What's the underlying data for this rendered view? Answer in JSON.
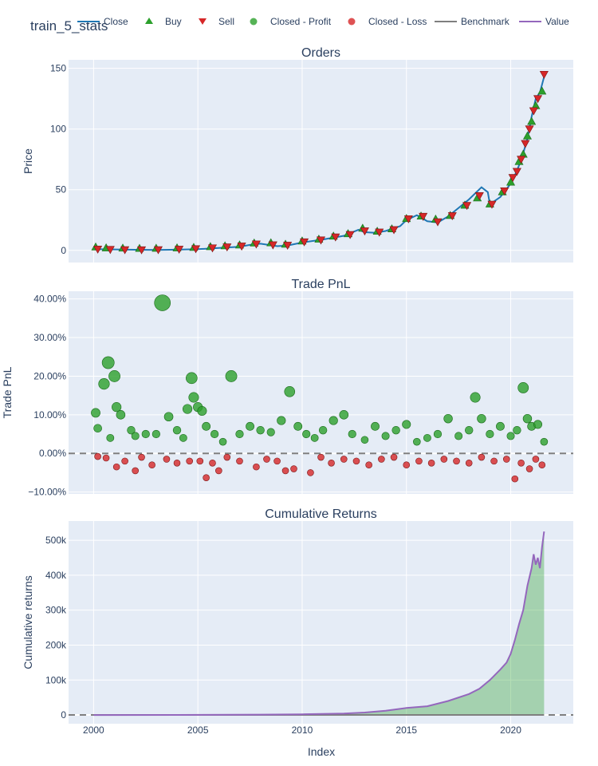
{
  "title": "train_5_stats",
  "colors": {
    "plot_bg": "#e5ecf6",
    "close": "#1f77b4",
    "buy": "#2ca02c",
    "sell": "#d62728",
    "profit": "#2ca02c",
    "loss": "#d62728",
    "benchmark": "#7f7f7f",
    "value": "#9467bd",
    "area_fill": "#2ca02c"
  },
  "legend": {
    "placement": "top",
    "items": [
      {
        "label": "Close",
        "icon": "line",
        "color": "#1f77b4"
      },
      {
        "label": "Buy",
        "icon": "triangle-up",
        "color": "#2ca02c"
      },
      {
        "label": "Sell",
        "icon": "triangle-down",
        "color": "#d62728"
      },
      {
        "label": "Closed - Profit",
        "icon": "circle",
        "color": "#2ca02c"
      },
      {
        "label": "Closed - Loss",
        "icon": "circle",
        "color": "#d62728"
      },
      {
        "label": "Benchmark",
        "icon": "line",
        "color": "#7f7f7f"
      },
      {
        "label": "Value",
        "icon": "line",
        "color": "#9467bd"
      }
    ]
  },
  "xaxis": {
    "label": "Index",
    "range": [
      1998.8,
      2023.0
    ],
    "ticks": [
      2000,
      2005,
      2010,
      2015,
      2020
    ],
    "tick_labels": [
      "2000",
      "2005",
      "2010",
      "2015",
      "2020"
    ]
  },
  "chart_data": [
    {
      "type": "line",
      "title": "Orders",
      "ylabel": "Price",
      "ylim": [
        -10,
        157
      ],
      "yticks": [
        0,
        50,
        100,
        150
      ],
      "ytick_labels": [
        "0",
        "50",
        "100",
        "150"
      ],
      "grid": true,
      "series": [
        {
          "name": "Close",
          "type": "line",
          "x": [
            2000.0,
            2001.0,
            2002.0,
            2003.0,
            2004.0,
            2005.0,
            2006.0,
            2007.0,
            2007.5,
            2008.0,
            2008.8,
            2009.3,
            2010.0,
            2011.0,
            2012.0,
            2012.7,
            2013.0,
            2013.5,
            2014.0,
            2014.7,
            2015.0,
            2015.5,
            2016.0,
            2016.5,
            2017.0,
            2017.5,
            2018.0,
            2018.6,
            2018.9,
            2019.0,
            2019.5,
            2020.0,
            2020.2,
            2020.4,
            2020.6,
            2020.8,
            2021.0,
            2021.2,
            2021.4,
            2021.6
          ],
          "y": [
            1,
            0.8,
            0.5,
            0.4,
            0.6,
            1.0,
            2.0,
            3.0,
            4.5,
            5.5,
            3.5,
            4.0,
            6.5,
            9.0,
            12.0,
            17.0,
            15.0,
            14.5,
            16.0,
            20.0,
            25.0,
            29.0,
            24.0,
            23.0,
            28.0,
            35.0,
            42.0,
            52.0,
            48.0,
            38.0,
            44.0,
            55.0,
            62.0,
            70.0,
            80.0,
            92.0,
            110.0,
            125.0,
            130.0,
            143.0
          ]
        },
        {
          "name": "Buy",
          "type": "markers",
          "x": [
            2000.1,
            2000.6,
            2001.4,
            2002.2,
            2003.0,
            2004.0,
            2004.8,
            2005.6,
            2006.3,
            2007.0,
            2007.7,
            2008.5,
            2009.2,
            2010.0,
            2010.8,
            2011.5,
            2012.2,
            2012.9,
            2013.6,
            2014.3,
            2015.0,
            2015.7,
            2016.4,
            2017.1,
            2017.8,
            2018.4,
            2019.0,
            2019.6,
            2020.0,
            2020.4,
            2020.6,
            2020.8,
            2021.0,
            2021.2,
            2021.5
          ],
          "y": [
            1.5,
            0.8,
            0.6,
            0.4,
            0.5,
            0.8,
            1.2,
            1.8,
            2.5,
            3.2,
            4.8,
            5.0,
            3.8,
            6.5,
            8.0,
            10.5,
            12.5,
            17.0,
            14.5,
            16.5,
            25.0,
            27.0,
            24.5,
            27.5,
            36.0,
            42.0,
            37.0,
            47.0,
            55.0,
            72.0,
            78.0,
            93.0,
            105.0,
            118.0,
            130.0
          ]
        },
        {
          "name": "Sell",
          "type": "markers",
          "x": [
            2000.2,
            2000.8,
            2001.5,
            2002.3,
            2003.1,
            2004.1,
            2004.9,
            2005.7,
            2006.4,
            2007.1,
            2007.8,
            2008.6,
            2009.3,
            2010.1,
            2010.9,
            2011.6,
            2012.3,
            2013.0,
            2013.7,
            2014.4,
            2015.1,
            2015.8,
            2016.5,
            2017.2,
            2017.9,
            2018.5,
            2019.1,
            2019.7,
            2020.1,
            2020.3,
            2020.5,
            2020.7,
            2020.9,
            2021.1,
            2021.3,
            2021.6
          ],
          "y": [
            1.0,
            0.7,
            0.5,
            0.4,
            0.5,
            0.9,
            1.3,
            2.0,
            2.8,
            3.5,
            5.2,
            4.5,
            4.2,
            7.0,
            8.5,
            11.0,
            13.0,
            16.0,
            15.0,
            17.0,
            26.0,
            28.0,
            23.5,
            28.5,
            37.0,
            45.0,
            38.0,
            49.0,
            60.0,
            65.0,
            75.0,
            88.0,
            100.0,
            115.0,
            125.0,
            145.0
          ]
        }
      ]
    },
    {
      "type": "scatter",
      "title": "Trade PnL",
      "ylabel": "Trade PnL",
      "ylim": [
        -0.105,
        0.42
      ],
      "yticks": [
        -0.1,
        0.0,
        0.1,
        0.2,
        0.3,
        0.4
      ],
      "ytick_labels": [
        "−10.00%",
        "0.00%",
        "10.00%",
        "20.00%",
        "30.00%",
        "40.00%"
      ],
      "zero_line": "dashed",
      "grid": true,
      "series": [
        {
          "name": "Closed - Profit",
          "x": [
            2000.1,
            2000.2,
            2000.5,
            2000.7,
            2000.8,
            2001.0,
            2001.1,
            2001.3,
            2001.8,
            2002.0,
            2002.5,
            2003.0,
            2003.3,
            2003.6,
            2004.0,
            2004.3,
            2004.5,
            2004.7,
            2004.8,
            2005.0,
            2005.2,
            2005.4,
            2005.8,
            2006.2,
            2006.6,
            2007.0,
            2007.5,
            2008.0,
            2008.5,
            2009.0,
            2009.4,
            2009.8,
            2010.2,
            2010.6,
            2011.0,
            2011.5,
            2012.0,
            2012.4,
            2013.0,
            2013.5,
            2014.0,
            2014.5,
            2015.0,
            2015.5,
            2016.0,
            2016.5,
            2017.0,
            2017.5,
            2018.0,
            2018.3,
            2018.6,
            2019.0,
            2019.5,
            2020.0,
            2020.3,
            2020.6,
            2020.8,
            2021.0,
            2021.3,
            2021.6
          ],
          "y": [
            0.105,
            0.065,
            0.18,
            0.235,
            0.04,
            0.2,
            0.12,
            0.1,
            0.06,
            0.045,
            0.05,
            0.05,
            0.39,
            0.095,
            0.06,
            0.04,
            0.115,
            0.195,
            0.145,
            0.12,
            0.11,
            0.07,
            0.05,
            0.03,
            0.2,
            0.05,
            0.07,
            0.06,
            0.055,
            0.085,
            0.16,
            0.07,
            0.05,
            0.04,
            0.06,
            0.085,
            0.1,
            0.05,
            0.035,
            0.07,
            0.045,
            0.06,
            0.075,
            0.03,
            0.04,
            0.05,
            0.09,
            0.045,
            0.06,
            0.145,
            0.09,
            0.05,
            0.07,
            0.045,
            0.06,
            0.17,
            0.09,
            0.07,
            0.075,
            0.03
          ]
        },
        {
          "name": "Closed - Loss",
          "x": [
            2000.2,
            2000.6,
            2001.1,
            2001.5,
            2002.0,
            2002.3,
            2002.8,
            2003.5,
            2004.0,
            2004.6,
            2005.1,
            2005.4,
            2005.7,
            2006.0,
            2006.4,
            2007.0,
            2007.8,
            2008.3,
            2008.8,
            2009.2,
            2009.6,
            2010.4,
            2010.9,
            2011.4,
            2012.0,
            2012.6,
            2013.2,
            2013.8,
            2014.4,
            2015.0,
            2015.6,
            2016.2,
            2016.8,
            2017.4,
            2018.0,
            2018.6,
            2019.2,
            2019.8,
            2020.2,
            2020.5,
            2020.9,
            2021.2,
            2021.5
          ],
          "y": [
            -0.008,
            -0.012,
            -0.035,
            -0.02,
            -0.045,
            -0.01,
            -0.03,
            -0.015,
            -0.025,
            -0.02,
            -0.02,
            -0.063,
            -0.025,
            -0.045,
            -0.01,
            -0.02,
            -0.035,
            -0.015,
            -0.02,
            -0.045,
            -0.04,
            -0.05,
            -0.01,
            -0.025,
            -0.015,
            -0.02,
            -0.03,
            -0.015,
            -0.01,
            -0.03,
            -0.02,
            -0.025,
            -0.015,
            -0.02,
            -0.025,
            -0.01,
            -0.02,
            -0.015,
            -0.066,
            -0.025,
            -0.04,
            -0.015,
            -0.03
          ]
        }
      ]
    },
    {
      "type": "area",
      "title": "Cumulative Returns",
      "ylabel": "Cumulative returns",
      "ylim": [
        -25000,
        555000
      ],
      "yticks": [
        0,
        100000,
        200000,
        300000,
        400000,
        500000
      ],
      "ytick_labels": [
        "0",
        "100k",
        "200k",
        "300k",
        "400k",
        "500k"
      ],
      "zero_line": "dashed",
      "grid": true,
      "series": [
        {
          "name": "Value",
          "x": [
            2000.0,
            2004.0,
            2008.0,
            2010.0,
            2012.0,
            2013.0,
            2014.0,
            2015.0,
            2016.0,
            2017.0,
            2018.0,
            2018.5,
            2019.0,
            2019.5,
            2019.8,
            2020.0,
            2020.2,
            2020.4,
            2020.6,
            2020.8,
            2021.0,
            2021.1,
            2021.2,
            2021.3,
            2021.4,
            2021.5,
            2021.6
          ],
          "y": [
            0,
            200,
            1000,
            2000,
            4000,
            7000,
            12000,
            20000,
            25000,
            40000,
            60000,
            75000,
            100000,
            130000,
            150000,
            175000,
            215000,
            260000,
            300000,
            370000,
            420000,
            460000,
            430000,
            450000,
            420000,
            480000,
            525000
          ]
        },
        {
          "name": "Benchmark",
          "x": [
            2000.0,
            2021.6
          ],
          "y": [
            0,
            0
          ]
        }
      ]
    }
  ]
}
